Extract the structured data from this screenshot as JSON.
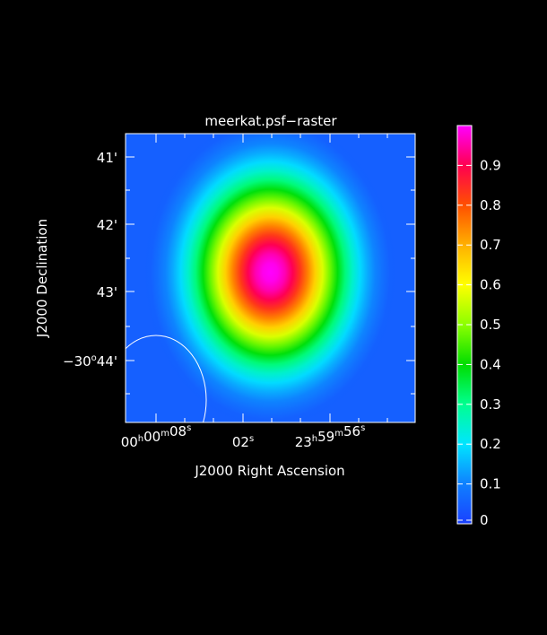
{
  "chart_data": {
    "type": "heatmap",
    "title": "meerkat.psf−raster",
    "xlabel": "J2000 Right Ascension",
    "ylabel": "J2000 Declination",
    "x_ticks": [
      {
        "main": "00",
        "u1": "h",
        "mid": "00",
        "u2": "m",
        "tail": "08",
        "u3": "s"
      },
      {
        "main": "",
        "u1": "",
        "mid": "",
        "u2": "",
        "tail": "02",
        "u3": "s"
      },
      {
        "main": "23",
        "u1": "h",
        "mid": "59",
        "u2": "m",
        "tail": "56",
        "u3": "s"
      }
    ],
    "y_ticks": [
      {
        "main": "",
        "deg": "",
        "arcmin": "41'"
      },
      {
        "main": "",
        "deg": "",
        "arcmin": "42'"
      },
      {
        "main": "",
        "deg": "",
        "arcmin": "43'"
      },
      {
        "main": "−30",
        "deg": "o",
        "arcmin": "44'"
      }
    ],
    "colorbar": {
      "range": [
        0,
        1
      ],
      "tick_values": [
        0,
        0.1,
        0.2,
        0.3,
        0.4,
        0.5,
        0.6,
        0.7,
        0.8,
        0.9
      ],
      "tick_labels": [
        "0",
        "0.1",
        "0.2",
        "0.3",
        "0.4",
        "0.5",
        "0.6",
        "0.7",
        "0.8",
        "0.9"
      ]
    },
    "psf": {
      "peak": 1.0,
      "center_fraction": [
        0.5,
        0.48
      ],
      "sigma_fraction": [
        0.17,
        0.21
      ]
    },
    "beam": {
      "shape": "ellipse",
      "color": "#ffffff"
    },
    "colormap": "rainbow",
    "grid": false
  }
}
